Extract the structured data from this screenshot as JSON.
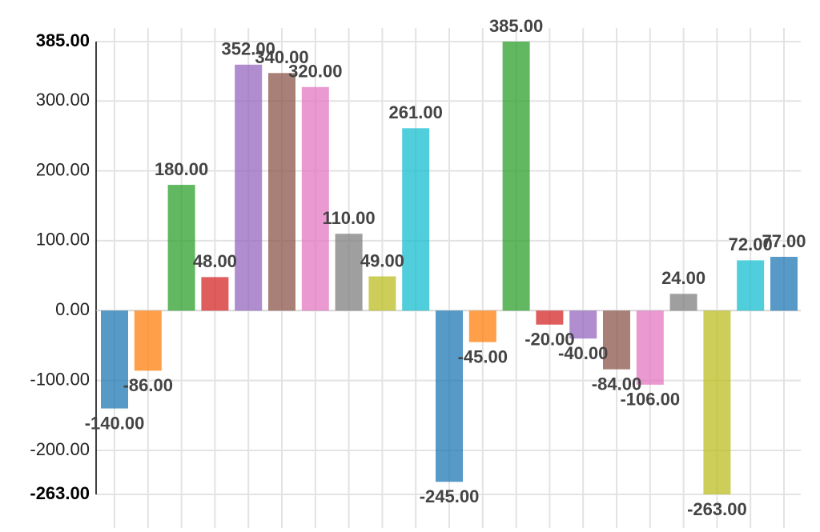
{
  "chart_data": {
    "type": "bar",
    "values": [
      -140,
      -86,
      180,
      48,
      352,
      340,
      320,
      110,
      49,
      261,
      -245,
      -45,
      385,
      -20,
      -40,
      -84,
      -106,
      24,
      -263,
      72,
      77
    ],
    "value_labels": [
      "-140.00",
      "-86.00",
      "180.00",
      "48.00",
      "352.00",
      "340.00",
      "320.00",
      "110.00",
      "49.00",
      "261.00",
      "-245.00",
      "-45.00",
      "385.00",
      "-20.00",
      "-40.00",
      "-84.00",
      "-106.00",
      "24.00",
      "-263.00",
      "72.00",
      "77.00"
    ],
    "colors": [
      "#1f77b4",
      "#ff7f0e",
      "#2ca02c",
      "#d62728",
      "#9467bd",
      "#8c564b",
      "#e377c2",
      "#7f7f7f",
      "#bcbd22",
      "#17becf"
    ],
    "ylim": [
      -263,
      385
    ],
    "yticks": [
      {
        "value": -263,
        "label": "-263.00"
      },
      {
        "value": -200,
        "label": "-200.00"
      },
      {
        "value": -100,
        "label": "-100.00"
      },
      {
        "value": 0,
        "label": "0.00"
      },
      {
        "value": 100,
        "label": "100.00"
      },
      {
        "value": 200,
        "label": "200.00"
      },
      {
        "value": 300,
        "label": "300.00"
      },
      {
        "value": 385,
        "label": "385.00"
      }
    ],
    "grid": true
  }
}
